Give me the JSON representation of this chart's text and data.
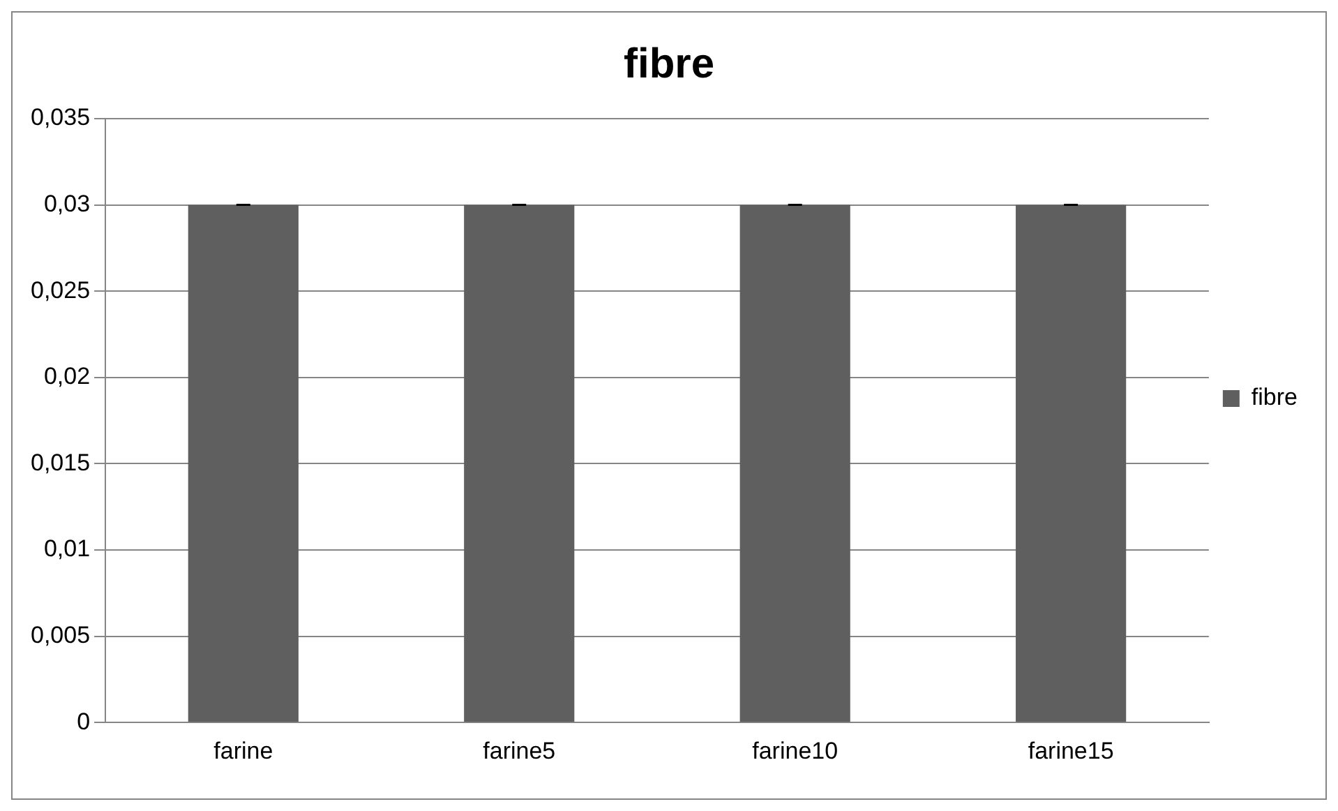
{
  "chart_data": {
    "type": "bar",
    "title": "fibre",
    "categories": [
      "farine",
      "farine5",
      "farine10",
      "farine15"
    ],
    "series": [
      {
        "name": "fibre",
        "color": "#5f5f5f",
        "values": [
          0.03,
          0.03,
          0.03,
          0.03
        ],
        "errors": [
          0,
          0,
          0,
          0
        ]
      }
    ],
    "ylim": [
      0,
      0.035
    ],
    "yticks": [
      0,
      {
        "value": 0.005,
        "label": "0,005"
      },
      {
        "value": 0.01,
        "label": "0,01"
      },
      {
        "value": 0.015,
        "label": "0,015"
      },
      {
        "value": 0.02,
        "label": "0,02"
      },
      {
        "value": 0.025,
        "label": "0,025"
      },
      {
        "value": 0.03,
        "label": "0,03"
      },
      {
        "value": 0.035,
        "label": "0,035"
      }
    ],
    "grid": "y",
    "legend": "right"
  }
}
